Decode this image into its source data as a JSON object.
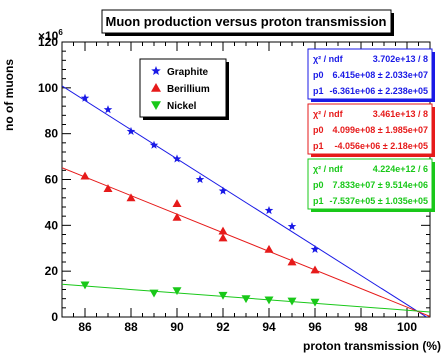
{
  "chart_data": {
    "type": "scatter",
    "title": "Muon production versus proton transmission",
    "xlabel": "proton transmission (%)",
    "ylabel": "no of muons",
    "y_exponent_label": "×10",
    "y_exponent_power": "6",
    "xlim": [
      85,
      101
    ],
    "ylim": [
      0,
      120
    ],
    "x_ticks": [
      86,
      88,
      90,
      92,
      94,
      96,
      98,
      100
    ],
    "y_ticks": [
      0,
      20,
      40,
      60,
      80,
      100,
      120
    ],
    "legend_placement": "top-left",
    "series": [
      {
        "name": "Graphite",
        "color": "#1a1ae6",
        "marker": "star",
        "points": [
          [
            86,
            95.5
          ],
          [
            87,
            90.5
          ],
          [
            88,
            81
          ],
          [
            89,
            75
          ],
          [
            90,
            69
          ],
          [
            91,
            60
          ],
          [
            92,
            55
          ],
          [
            94,
            46.5
          ],
          [
            95,
            39.5
          ],
          [
            96,
            29.5
          ]
        ],
        "fit": {
          "slope": -6.361,
          "intercept": 641.5
        },
        "stats": {
          "chi_label": "χ² / ndf",
          "chi_value": "3.702e+13 / 8",
          "p0_label": "p0",
          "p0_value": "6.415e+08 ± 2.033e+07",
          "p1_label": "p1",
          "p1_value": "-6.361e+06 ± 2.238e+05"
        }
      },
      {
        "name": "Berillium",
        "color": "#e61a1a",
        "marker": "triangle-up",
        "points": [
          [
            86,
            61.5
          ],
          [
            87,
            56
          ],
          [
            88,
            52
          ],
          [
            90,
            49.5
          ],
          [
            90,
            43.5
          ],
          [
            92,
            37.5
          ],
          [
            92,
            34.5
          ],
          [
            94,
            29.5
          ],
          [
            95,
            24
          ],
          [
            96,
            20.5
          ]
        ],
        "fit": {
          "slope": -4.056,
          "intercept": 409.9
        },
        "stats": {
          "chi_label": "χ² / ndf",
          "chi_value": "3.461e+13 / 8",
          "p0_label": "p0",
          "p0_value": "4.099e+08 ± 1.985e+07",
          "p1_label": "p1",
          "p1_value": "-4.056e+06 ± 2.18e+05"
        }
      },
      {
        "name": "Nickel",
        "color": "#19c819",
        "marker": "triangle-down",
        "points": [
          [
            86,
            14
          ],
          [
            89,
            10.5
          ],
          [
            90,
            11.5
          ],
          [
            92,
            9.5
          ],
          [
            93,
            8
          ],
          [
            94,
            7.5
          ],
          [
            95,
            7
          ],
          [
            96,
            6.5
          ]
        ],
        "fit": {
          "slope": -0.7537,
          "intercept": 78.33
        },
        "stats": {
          "chi_label": "χ² / ndf",
          "chi_value": "4.224e+12 / 6",
          "p0_label": "p0",
          "p0_value": "7.833e+07 ± 9.514e+06",
          "p1_label": "p1",
          "p1_value": "-7.537e+05 ± 1.035e+05"
        }
      }
    ]
  }
}
